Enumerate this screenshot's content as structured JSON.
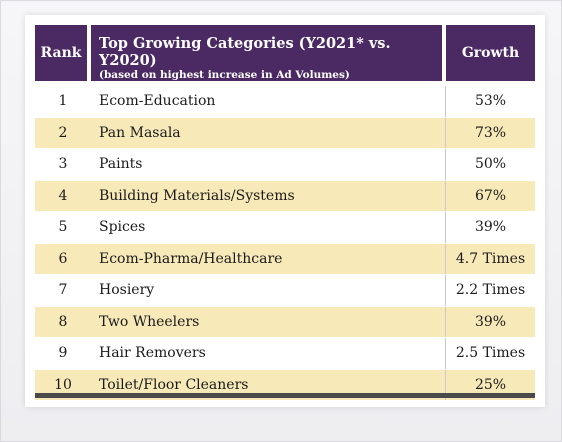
{
  "header": {
    "rank": "Rank",
    "category_title": "Top Growing Categories (Y2021* vs. Y2020)",
    "category_subtitle": "(based on highest increase in Ad Volumes)",
    "growth": "Growth"
  },
  "rows": [
    {
      "rank": "1",
      "category": "Ecom-Education",
      "growth": "53%"
    },
    {
      "rank": "2",
      "category": "Pan Masala",
      "growth": "73%"
    },
    {
      "rank": "3",
      "category": "Paints",
      "growth": "50%"
    },
    {
      "rank": "4",
      "category": "Building Materials/Systems",
      "growth": "67%"
    },
    {
      "rank": "5",
      "category": "Spices",
      "growth": "39%"
    },
    {
      "rank": "6",
      "category": "Ecom-Pharma/Healthcare",
      "growth": "4.7 Times"
    },
    {
      "rank": "7",
      "category": "Hosiery",
      "growth": "2.2 Times"
    },
    {
      "rank": "8",
      "category": "Two Wheelers",
      "growth": "39%"
    },
    {
      "rank": "9",
      "category": "Hair Removers",
      "growth": "2.5 Times"
    },
    {
      "rank": "10",
      "category": "Toilet/Floor Cleaners",
      "growth": "25%"
    }
  ],
  "colors": {
    "header_bg": "#4b2a63",
    "row_highlight": "#f7e9b8",
    "row_plain": "#ffffff"
  }
}
